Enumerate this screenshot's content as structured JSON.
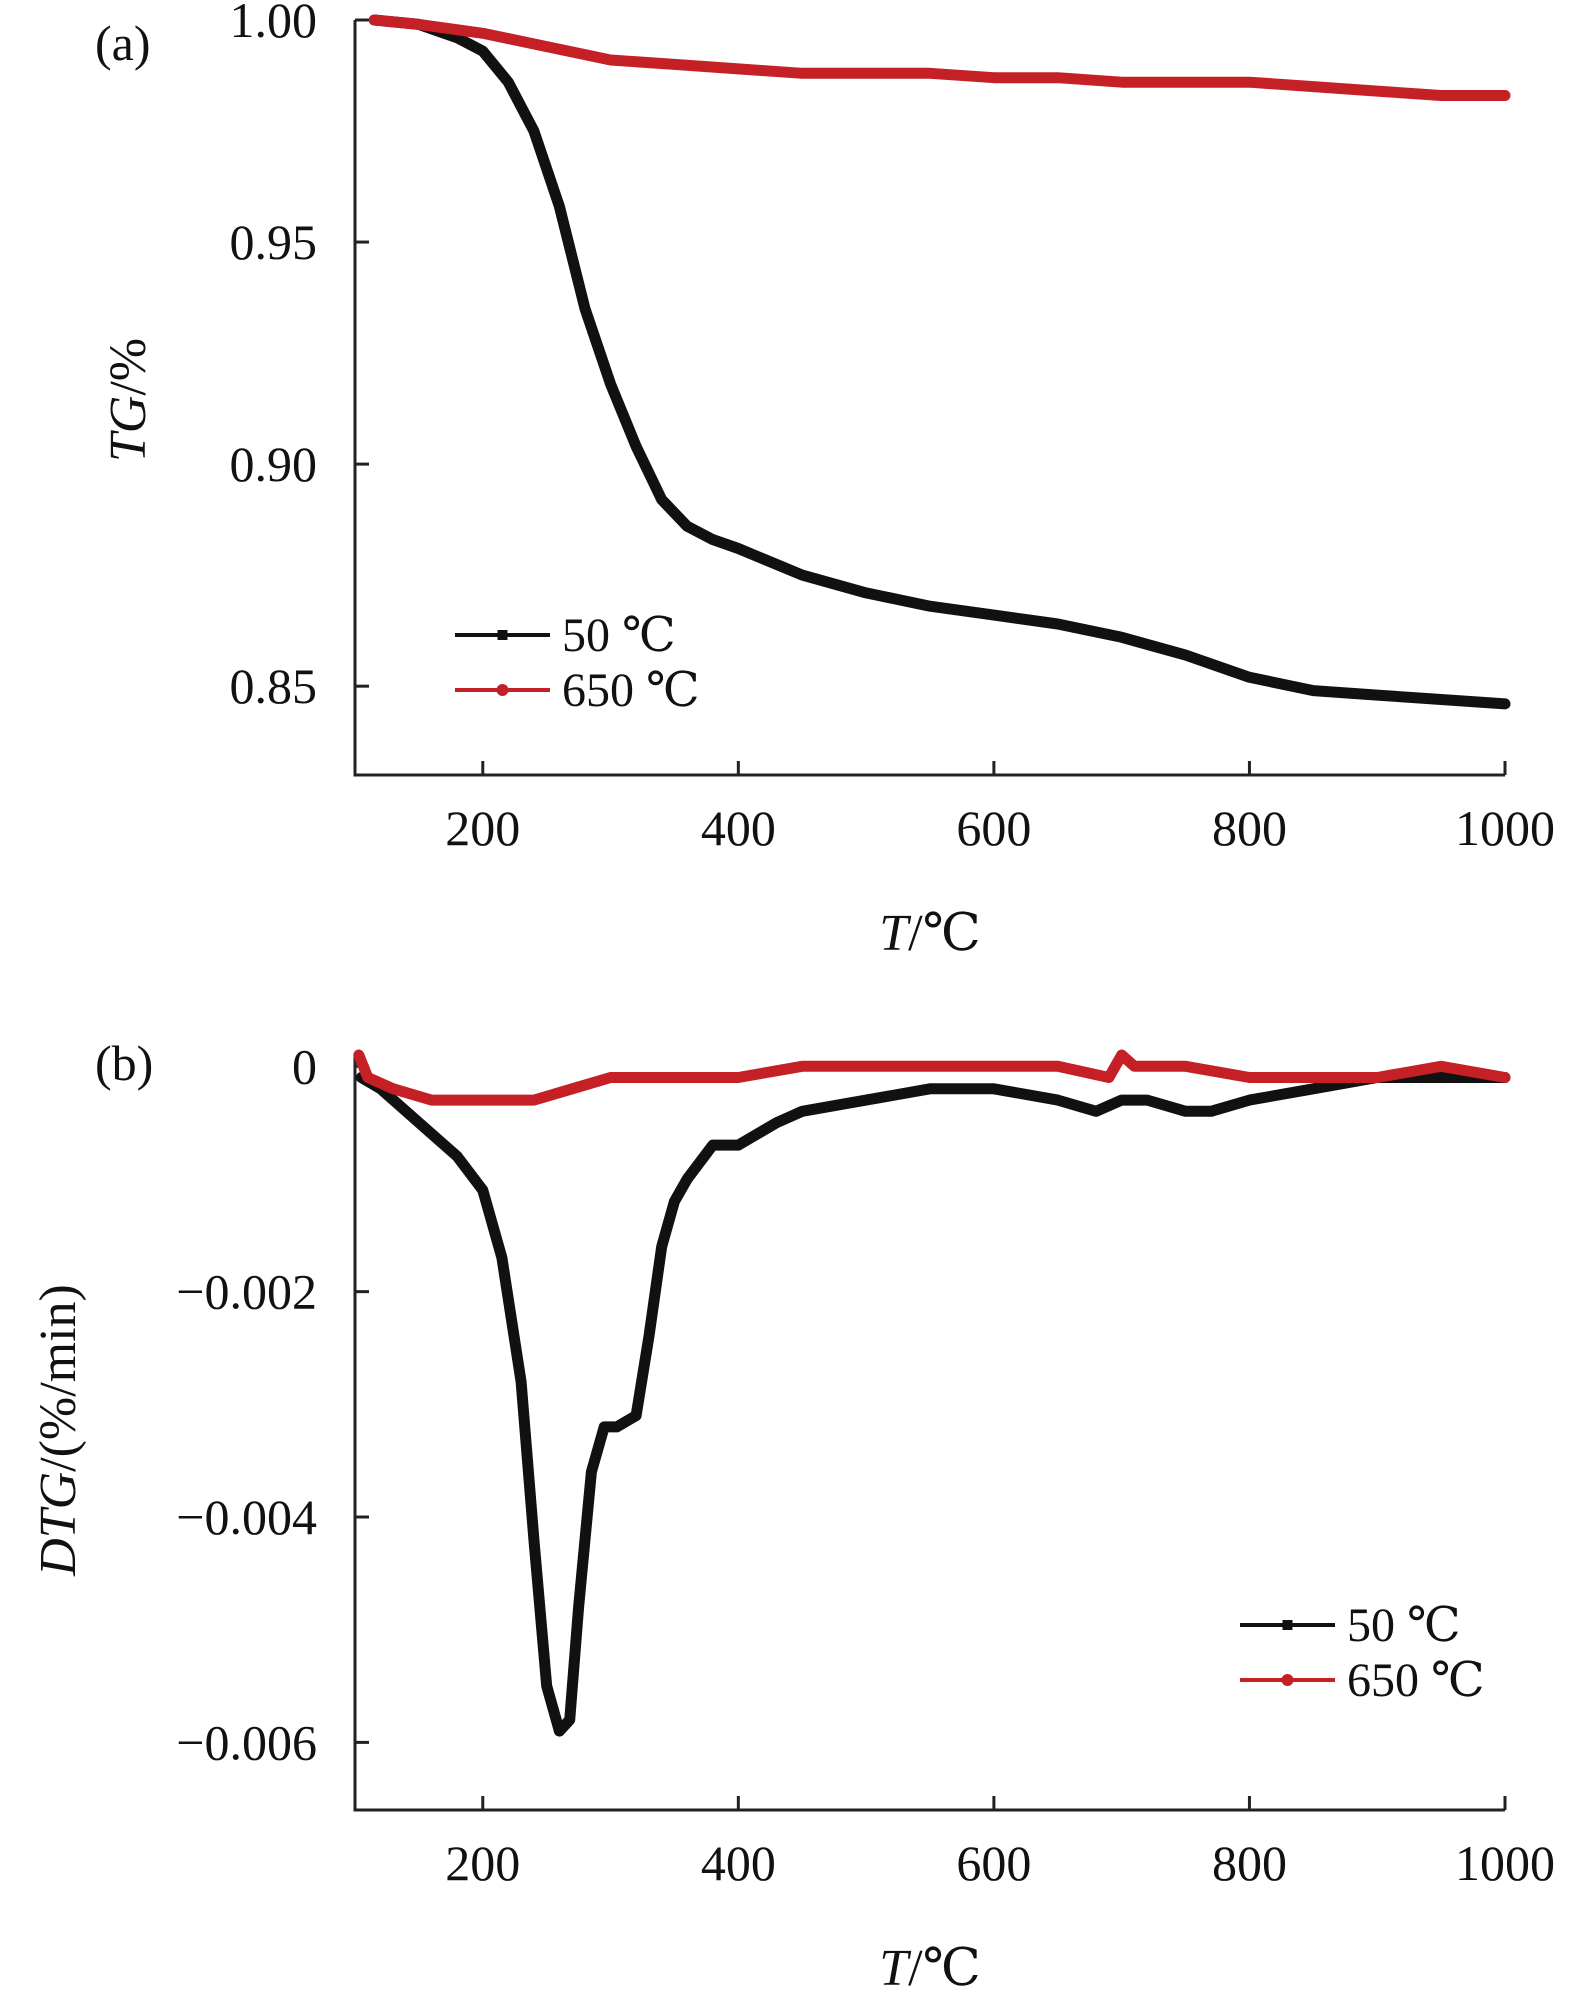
{
  "chart_data": [
    {
      "type": "line",
      "panel_label": "(a)",
      "xlabel": "T/℃",
      "xlabel_italic": "T",
      "xlabel_rest": "/℃",
      "ylabel": "TG/%",
      "ylabel_italic": "TG",
      "ylabel_rest": "/%",
      "xlim": [
        100,
        1000
      ],
      "ylim": [
        0.83,
        1.0
      ],
      "xticks": [
        200,
        400,
        600,
        800,
        1000
      ],
      "xtick_labels": [
        "200",
        "400",
        "600",
        "800",
        "1000"
      ],
      "yticks": [
        0.85,
        0.9,
        0.95,
        1.0
      ],
      "ytick_labels": [
        "0.85",
        "0.90",
        "0.95",
        "1.00"
      ],
      "legend_position": "bottom-left",
      "series": [
        {
          "name": "50 ℃",
          "color": "#111111",
          "x": [
            115,
            150,
            180,
            200,
            220,
            240,
            260,
            280,
            300,
            320,
            340,
            360,
            380,
            400,
            450,
            500,
            550,
            600,
            650,
            700,
            750,
            800,
            850,
            900,
            950,
            1000
          ],
          "y": [
            1.0,
            0.999,
            0.996,
            0.993,
            0.986,
            0.975,
            0.958,
            0.935,
            0.918,
            0.904,
            0.892,
            0.886,
            0.883,
            0.881,
            0.875,
            0.871,
            0.868,
            0.866,
            0.864,
            0.861,
            0.857,
            0.852,
            0.849,
            0.848,
            0.847,
            0.846
          ]
        },
        {
          "name": "650 ℃",
          "color": "#c42026",
          "x": [
            115,
            150,
            200,
            250,
            300,
            350,
            400,
            450,
            500,
            550,
            600,
            650,
            700,
            750,
            800,
            850,
            900,
            950,
            1000
          ],
          "y": [
            1.0,
            0.999,
            0.997,
            0.994,
            0.991,
            0.99,
            0.989,
            0.988,
            0.988,
            0.988,
            0.987,
            0.987,
            0.986,
            0.986,
            0.986,
            0.985,
            0.984,
            0.983,
            0.983
          ]
        }
      ]
    },
    {
      "type": "line",
      "panel_label": "(b)",
      "xlabel": "T/℃",
      "xlabel_italic": "T",
      "xlabel_rest": "/℃",
      "ylabel": "DTG/(%/min)",
      "ylabel_italic": "DTG",
      "ylabel_rest": "/(%/min)",
      "xlim": [
        100,
        1000
      ],
      "ylim": [
        -0.0066,
        0.0001
      ],
      "xticks": [
        200,
        400,
        600,
        800,
        1000
      ],
      "xtick_labels": [
        "200",
        "400",
        "600",
        "800",
        "1000"
      ],
      "yticks": [
        0,
        -0.002,
        -0.004,
        -0.006
      ],
      "ytick_labels": [
        "0",
        "−0.002",
        "−0.004",
        "−0.006"
      ],
      "legend_position": "bottom-right",
      "series": [
        {
          "name": "50 ℃",
          "color": "#111111",
          "x": [
            105,
            120,
            150,
            180,
            200,
            215,
            230,
            240,
            250,
            260,
            268,
            275,
            285,
            295,
            305,
            320,
            330,
            340,
            350,
            360,
            380,
            400,
            430,
            450,
            500,
            550,
            600,
            650,
            680,
            700,
            720,
            750,
            770,
            800,
            850,
            900,
            950,
            1000
          ],
          "y": [
            -0.0001,
            -0.0002,
            -0.0005,
            -0.0008,
            -0.0011,
            -0.0017,
            -0.0028,
            -0.0042,
            -0.0055,
            -0.0059,
            -0.0058,
            -0.0048,
            -0.0036,
            -0.0032,
            -0.0032,
            -0.0031,
            -0.0024,
            -0.0016,
            -0.0012,
            -0.001,
            -0.0007,
            -0.0007,
            -0.0005,
            -0.0004,
            -0.0003,
            -0.0002,
            -0.0002,
            -0.0003,
            -0.0004,
            -0.0003,
            -0.0003,
            -0.0004,
            -0.0004,
            -0.0003,
            -0.0002,
            -0.0001,
            -0.0001,
            -0.0001
          ]
        },
        {
          "name": "650 ℃",
          "color": "#c42026",
          "x": [
            103,
            110,
            130,
            160,
            200,
            240,
            270,
            300,
            350,
            400,
            450,
            500,
            550,
            600,
            650,
            690,
            700,
            710,
            750,
            800,
            850,
            900,
            950,
            1000
          ],
          "y": [
            0.0001,
            -0.0001,
            -0.0002,
            -0.0003,
            -0.0003,
            -0.0003,
            -0.0002,
            -0.0001,
            -0.0001,
            -0.0001,
            0.0,
            0.0,
            0.0,
            0.0,
            0.0,
            -0.0001,
            0.0001,
            0.0,
            0.0,
            -0.0001,
            -0.0001,
            -0.0001,
            0.0,
            -0.0001
          ]
        }
      ]
    }
  ]
}
